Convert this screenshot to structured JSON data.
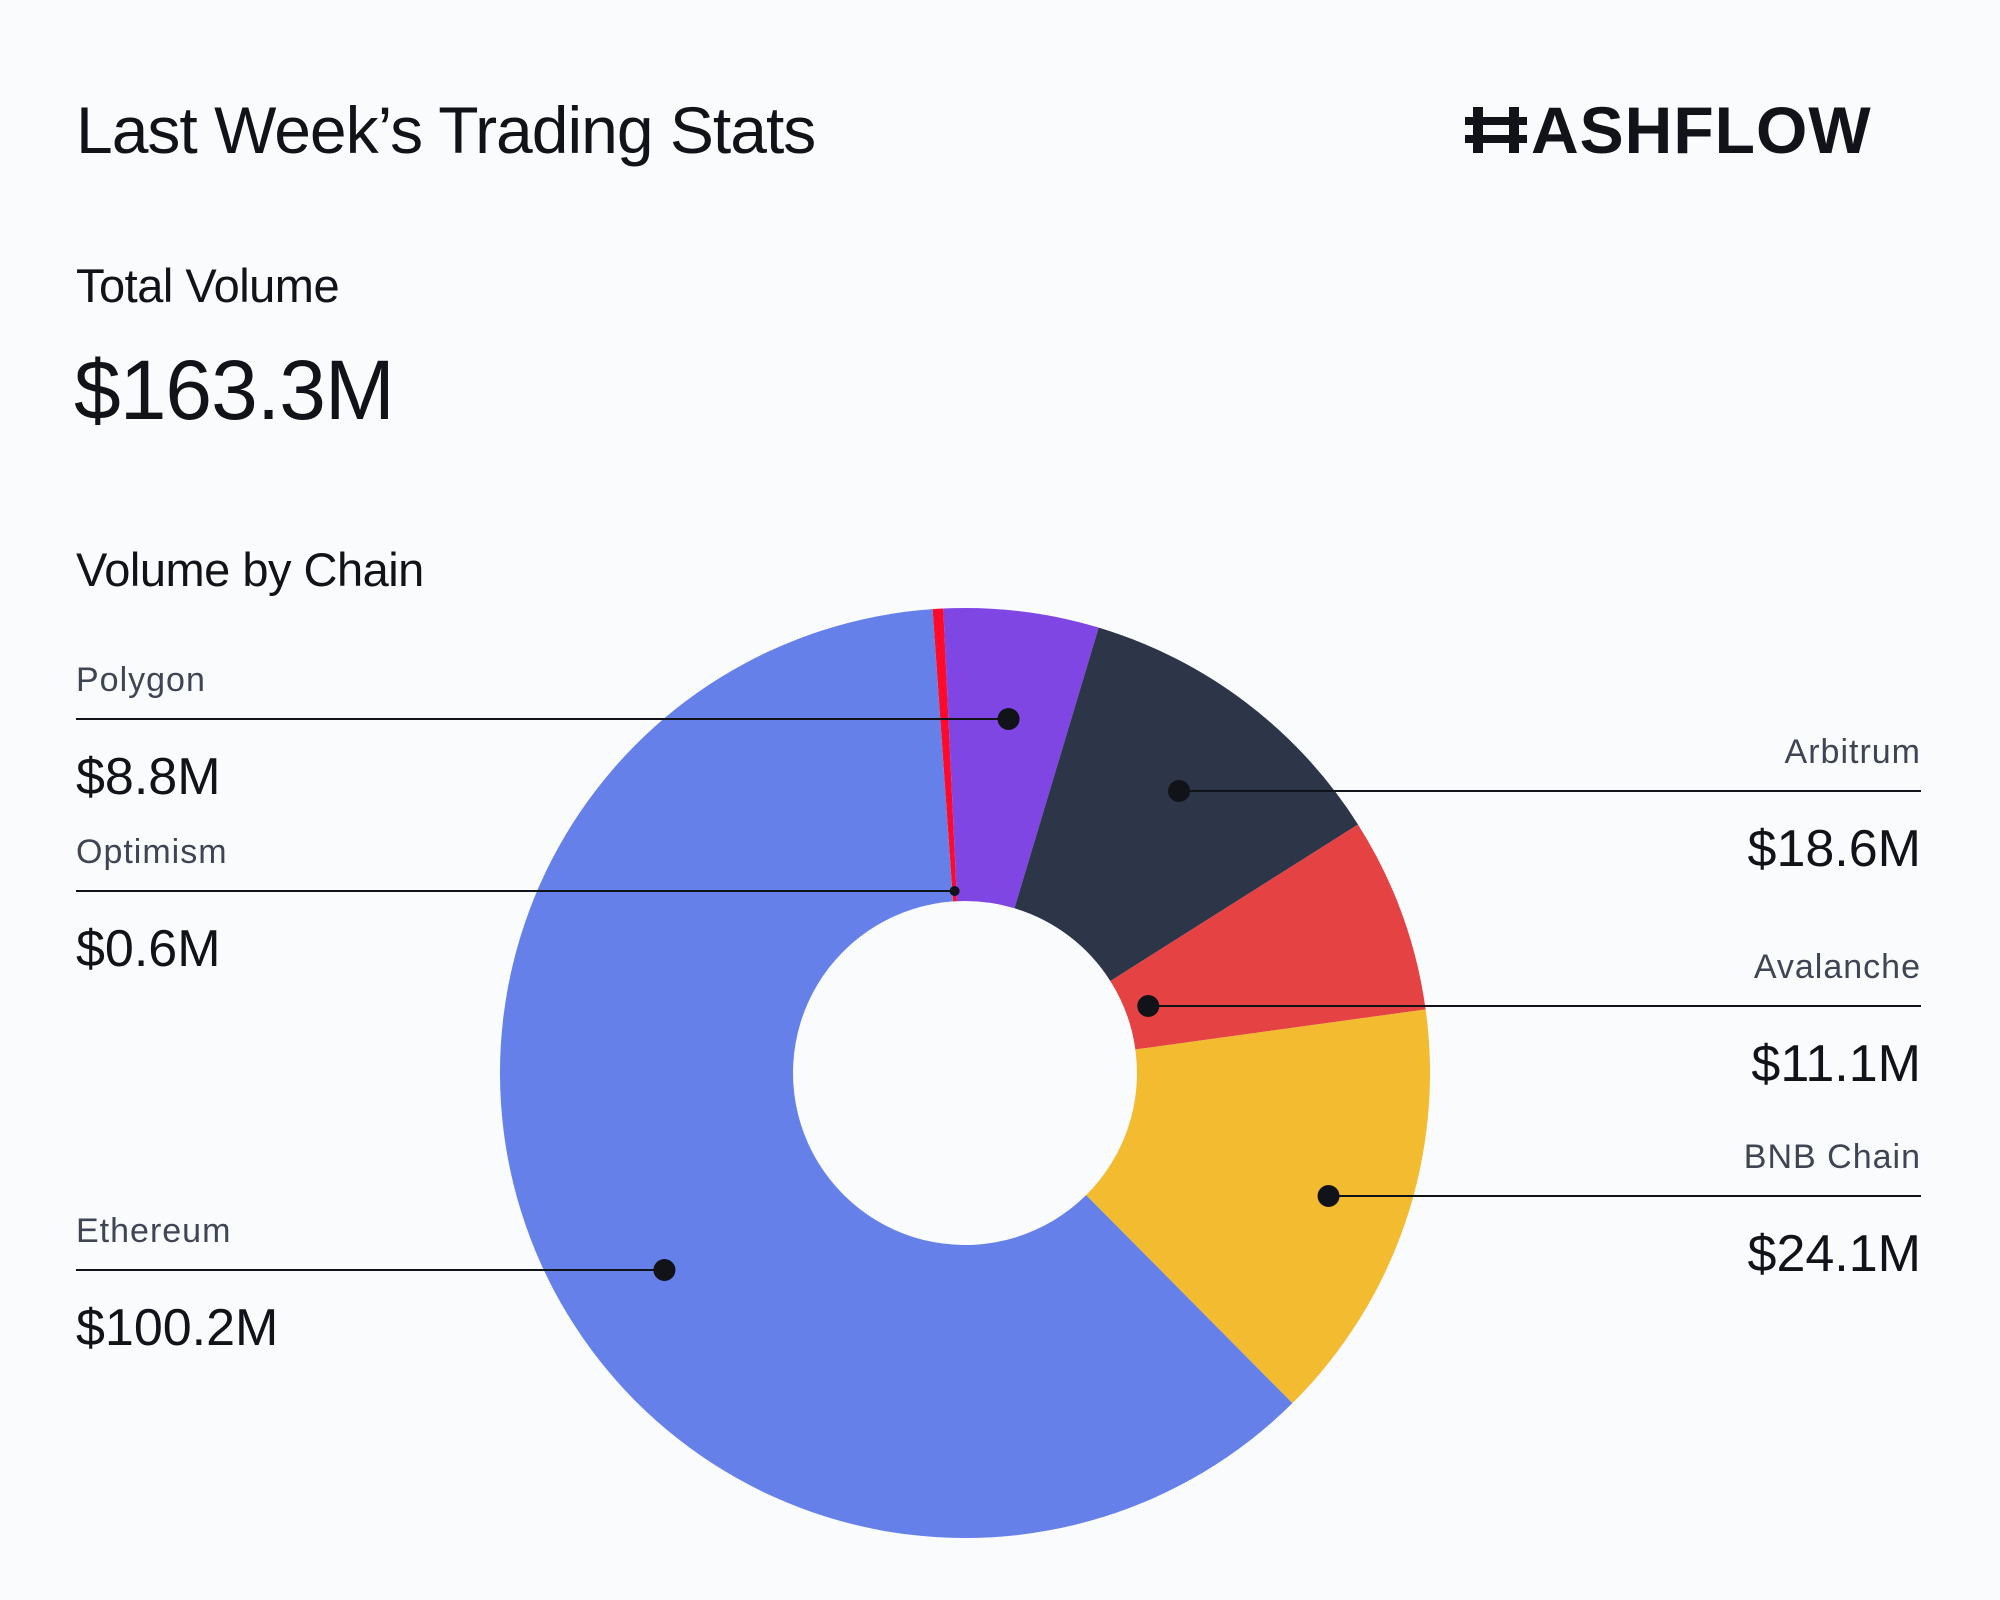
{
  "header": {
    "title": "Last Week’s Trading Stats",
    "brand": "ASHFLOW"
  },
  "total": {
    "label": "Total Volume",
    "value": "$163.3M"
  },
  "section": {
    "label": "Volume by Chain"
  },
  "chart_data": {
    "type": "pie",
    "variant": "donut",
    "title": "Volume by Chain",
    "unit": "$M",
    "slices": [
      {
        "name": "Optimism",
        "value": 0.6,
        "value_label": "$0.6M",
        "color": "#ff0a2a",
        "label_side": "left"
      },
      {
        "name": "Polygon",
        "value": 8.8,
        "value_label": "$8.8M",
        "color": "#8046e4",
        "label_side": "left"
      },
      {
        "name": "Arbitrum",
        "value": 18.6,
        "value_label": "$18.6M",
        "color": "#2d3549",
        "label_side": "right"
      },
      {
        "name": "Avalanche",
        "value": 11.1,
        "value_label": "$11.1M",
        "color": "#e54343",
        "label_side": "right"
      },
      {
        "name": "BNB Chain",
        "value": 24.1,
        "value_label": "$24.1M",
        "color": "#f3bb30",
        "label_side": "right"
      },
      {
        "name": "Ethereum",
        "value": 100.2,
        "value_label": "$100.2M",
        "color": "#6680ea",
        "label_side": "left"
      }
    ]
  }
}
